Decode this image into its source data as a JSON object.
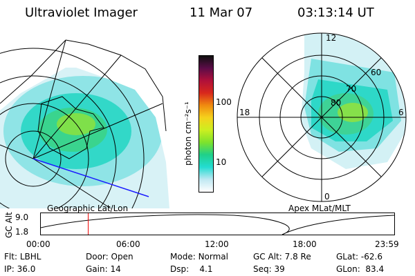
{
  "header": {
    "instrument": "Ultraviolet Imager",
    "date": "11 Mar 07",
    "time": "03:13:14 UT"
  },
  "geo_map": {
    "label": "Geographic Lat/Lon"
  },
  "polar_plot": {
    "label": "Apex MLat/MLT",
    "mlt_labels": {
      "top": "12",
      "left": "18",
      "right": "6",
      "bottom": "0"
    },
    "lat_labels": [
      "80",
      "70",
      "60"
    ]
  },
  "colorbar": {
    "ticks": [
      "100",
      "10"
    ],
    "unit_label": "photon cm⁻²s⁻¹",
    "colors": [
      "#ffffff",
      "#bfe8f2",
      "#23dcd2",
      "#1fd08a",
      "#7ee22c",
      "#ccef20",
      "#f5d21c",
      "#f08a10",
      "#d8281c",
      "#b0103a",
      "#5c0c48",
      "#101010"
    ]
  },
  "altitude_strip": {
    "axis_title": "GC Alt",
    "y_ticks": [
      "9.0",
      "1.8"
    ],
    "x_ticks": [
      "00:00",
      "06:00",
      "12:00",
      "18:00",
      "23:59"
    ],
    "current_time_marker_hours": 3.22
  },
  "status": {
    "filter": {
      "label": "Flt:",
      "value": "LBHL"
    },
    "ip": {
      "label": "IP:",
      "value": "36.0"
    },
    "door": {
      "label": "Door:",
      "value": "Open"
    },
    "gain": {
      "label": "Gain:",
      "value": "14"
    },
    "mode": {
      "label": "Mode:",
      "value": "Normal"
    },
    "dsp": {
      "label": "Dsp:",
      "value": "4.1"
    },
    "gc_alt": {
      "label": "GC Alt:",
      "value": "7.8 Re"
    },
    "seq": {
      "label": "Seq:",
      "value": "39"
    },
    "glat": {
      "label": "GLat:",
      "value": "-62.6"
    },
    "glon": {
      "label": "GLon:",
      "value": "83.4"
    }
  }
}
